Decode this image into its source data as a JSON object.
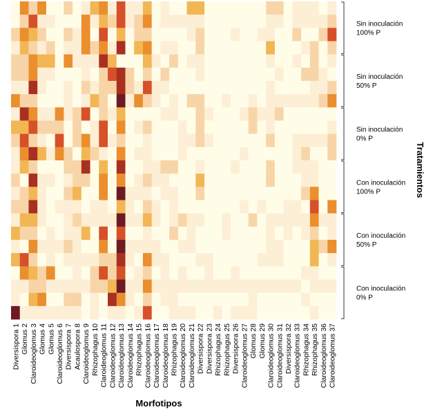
{
  "chart_data": {
    "type": "heatmap",
    "title": "",
    "xlabel": "Morfotipos",
    "ylabel": "Tratamientos",
    "color_scale": [
      "#FFFDE8",
      "#FDEFD6",
      "#F8D5A8",
      "#F2B655",
      "#EA8E2E",
      "#D6502A",
      "#A83020",
      "#6E1A24"
    ],
    "intensity_levels": [
      0,
      1,
      2,
      3,
      4,
      5,
      6,
      7
    ],
    "columns": [
      "Diversispora 1",
      "Glomus 2",
      "Claroideoglomus 3",
      "Glomus 4",
      "Glomus 5",
      "Claroideoglomus 6",
      "Diversispora 7",
      "Acaulospora 8",
      "Claroideoglomus 9",
      "Rhizophagus 10",
      "Claroideoglomus 11",
      "Claroideoglomus 12",
      "Claroideoglomus 13",
      "Claroideoglomus 14",
      "Rhizophagus 15",
      "Claroideoglomus 16",
      "Claroideoglomus 17",
      "Claroideoglomus 18",
      "Rhizophagus 19",
      "Claroideoglomus 20",
      "Claroideoglomus 21",
      "Diversispora 22",
      "Diversispora 23",
      "Rhizophagus 24",
      "Rhizophagus 25",
      "Diversispora 26",
      "Claroideoglomus 27",
      "Glomus 28",
      "Glomus 29",
      "Claroideoglomus 30",
      "Claroideoglomus 31",
      "Diversispora 32",
      "Claroideoglomus 33",
      "Rhizophagus 34",
      "Rhizophagus 35",
      "Claroideoglomus 36",
      "Claroideoglomus 37"
    ],
    "groups": [
      {
        "label_line1": "Sin inoculación",
        "label_line2": "100% P",
        "rows": 4
      },
      {
        "label_line1": "Sin inoculación",
        "label_line2": "50% P",
        "rows": 4
      },
      {
        "label_line1": "Sin inoculación",
        "label_line2": "0% P",
        "rows": 4
      },
      {
        "label_line1": "Con inoculación",
        "label_line2": "100% P",
        "rows": 4
      },
      {
        "label_line1": "Con inoculación",
        "label_line2": "50% P",
        "rows": 4
      },
      {
        "label_line1": "Con inoculación",
        "label_line2": "0% P",
        "rows": 4
      }
    ],
    "values": [
      [
        0,
        4,
        2,
        4,
        0,
        0,
        2,
        0,
        1,
        3,
        4,
        1,
        5,
        1,
        1,
        3,
        0,
        1,
        0,
        0,
        3,
        3,
        0,
        0,
        0,
        0,
        0,
        0,
        0,
        2,
        2,
        0,
        1,
        1,
        1,
        0,
        1
      ],
      [
        0,
        2,
        5,
        1,
        1,
        0,
        0,
        0,
        4,
        1,
        3,
        2,
        5,
        1,
        2,
        4,
        0,
        1,
        1,
        1,
        1,
        1,
        0,
        0,
        0,
        0,
        0,
        0,
        0,
        1,
        1,
        0,
        1,
        1,
        1,
        1,
        2
      ],
      [
        2,
        4,
        3,
        2,
        0,
        0,
        2,
        1,
        4,
        0,
        5,
        0,
        3,
        0,
        2,
        2,
        0,
        0,
        0,
        0,
        1,
        2,
        0,
        0,
        0,
        1,
        0,
        0,
        1,
        1,
        0,
        0,
        2,
        0,
        0,
        2,
        5
      ],
      [
        1,
        3,
        2,
        1,
        2,
        0,
        1,
        1,
        4,
        2,
        4,
        1,
        6,
        0,
        3,
        4,
        0,
        1,
        1,
        0,
        0,
        2,
        0,
        0,
        0,
        0,
        0,
        0,
        0,
        3,
        0,
        0,
        0,
        1,
        2,
        0,
        2
      ],
      [
        2,
        2,
        4,
        3,
        3,
        0,
        4,
        1,
        1,
        1,
        6,
        3,
        0,
        0,
        0,
        3,
        1,
        0,
        2,
        0,
        1,
        1,
        0,
        0,
        0,
        0,
        0,
        0,
        0,
        1,
        0,
        0,
        1,
        0,
        2,
        0,
        1
      ],
      [
        2,
        2,
        4,
        1,
        1,
        0,
        0,
        0,
        1,
        0,
        2,
        5,
        6,
        2,
        0,
        2,
        0,
        2,
        0,
        0,
        0,
        1,
        0,
        0,
        0,
        0,
        0,
        0,
        0,
        0,
        1,
        0,
        0,
        2,
        2,
        1,
        0
      ],
      [
        1,
        1,
        6,
        1,
        0,
        0,
        1,
        0,
        2,
        1,
        2,
        2,
        6,
        2,
        1,
        5,
        1,
        1,
        0,
        0,
        0,
        0,
        0,
        0,
        0,
        0,
        0,
        0,
        0,
        1,
        0,
        0,
        0,
        0,
        1,
        1,
        2
      ],
      [
        4,
        2,
        2,
        0,
        0,
        0,
        1,
        0,
        1,
        3,
        2,
        0,
        7,
        1,
        4,
        2,
        1,
        0,
        1,
        0,
        2,
        2,
        0,
        0,
        1,
        0,
        0,
        1,
        0,
        1,
        1,
        1,
        1,
        1,
        1,
        2,
        4
      ],
      [
        1,
        6,
        4,
        1,
        1,
        4,
        1,
        2,
        5,
        0,
        2,
        1,
        3,
        0,
        0,
        0,
        0,
        1,
        1,
        0,
        0,
        2,
        1,
        0,
        0,
        0,
        1,
        2,
        1,
        1,
        2,
        0,
        0,
        0,
        0,
        0,
        0
      ],
      [
        3,
        3,
        5,
        2,
        2,
        2,
        0,
        2,
        0,
        1,
        5,
        0,
        4,
        0,
        1,
        2,
        0,
        0,
        0,
        1,
        0,
        2,
        0,
        0,
        0,
        0,
        0,
        2,
        0,
        1,
        0,
        0,
        0,
        0,
        0,
        0,
        1
      ],
      [
        2,
        5,
        2,
        1,
        0,
        5,
        0,
        2,
        4,
        1,
        5,
        1,
        2,
        0,
        0,
        1,
        0,
        0,
        0,
        1,
        1,
        2,
        1,
        0,
        0,
        0,
        0,
        0,
        0,
        2,
        0,
        0,
        1,
        1,
        1,
        1,
        2
      ],
      [
        1,
        4,
        6,
        3,
        1,
        4,
        2,
        0,
        3,
        2,
        1,
        0,
        4,
        0,
        1,
        1,
        0,
        0,
        0,
        1,
        0,
        0,
        0,
        0,
        0,
        0,
        1,
        0,
        0,
        0,
        0,
        0,
        1,
        2,
        0,
        0,
        2
      ],
      [
        1,
        3,
        2,
        0,
        0,
        0,
        2,
        2,
        6,
        0,
        3,
        0,
        6,
        0,
        0,
        1,
        1,
        2,
        2,
        0,
        0,
        1,
        0,
        0,
        0,
        1,
        0,
        0,
        0,
        2,
        0,
        0,
        1,
        1,
        1,
        0,
        0
      ],
      [
        2,
        0,
        6,
        1,
        1,
        0,
        1,
        2,
        2,
        0,
        4,
        0,
        4,
        0,
        1,
        2,
        1,
        1,
        0,
        0,
        0,
        3,
        0,
        0,
        0,
        0,
        0,
        0,
        0,
        2,
        0,
        0,
        0,
        1,
        1,
        0,
        0
      ],
      [
        1,
        2,
        3,
        1,
        0,
        0,
        2,
        3,
        0,
        0,
        4,
        0,
        7,
        1,
        1,
        1,
        0,
        1,
        1,
        0,
        0,
        2,
        0,
        0,
        0,
        0,
        0,
        0,
        0,
        0,
        0,
        0,
        0,
        2,
        4,
        0,
        0
      ],
      [
        2,
        2,
        6,
        1,
        0,
        1,
        1,
        1,
        0,
        1,
        1,
        0,
        3,
        1,
        0,
        2,
        1,
        0,
        1,
        0,
        0,
        0,
        0,
        0,
        0,
        0,
        1,
        0,
        1,
        0,
        0,
        1,
        1,
        0,
        5,
        0,
        4
      ],
      [
        1,
        3,
        3,
        1,
        0,
        0,
        1,
        2,
        1,
        1,
        1,
        1,
        7,
        1,
        1,
        3,
        1,
        0,
        1,
        2,
        1,
        1,
        0,
        0,
        1,
        0,
        0,
        2,
        0,
        1,
        1,
        1,
        1,
        1,
        4,
        1,
        1
      ],
      [
        3,
        2,
        2,
        0,
        1,
        0,
        1,
        1,
        3,
        0,
        5,
        0,
        5,
        0,
        0,
        1,
        0,
        0,
        2,
        0,
        1,
        0,
        0,
        0,
        1,
        0,
        0,
        0,
        0,
        1,
        0,
        1,
        0,
        1,
        2,
        0,
        1
      ],
      [
        1,
        0,
        4,
        1,
        1,
        1,
        2,
        1,
        0,
        0,
        4,
        0,
        7,
        1,
        1,
        1,
        1,
        0,
        0,
        1,
        1,
        0,
        0,
        0,
        0,
        0,
        0,
        0,
        0,
        1,
        1,
        0,
        0,
        0,
        3,
        2,
        4
      ],
      [
        3,
        5,
        2,
        0,
        1,
        0,
        1,
        1,
        1,
        1,
        2,
        2,
        6,
        1,
        0,
        4,
        1,
        1,
        0,
        0,
        0,
        1,
        1,
        0,
        0,
        0,
        0,
        0,
        1,
        1,
        1,
        0,
        0,
        0,
        3,
        0,
        1
      ],
      [
        0,
        4,
        3,
        2,
        4,
        0,
        0,
        1,
        0,
        2,
        5,
        2,
        5,
        0,
        1,
        2,
        0,
        1,
        0,
        1,
        0,
        0,
        1,
        0,
        0,
        1,
        0,
        0,
        0,
        0,
        0,
        0,
        0,
        1,
        1,
        0,
        0
      ],
      [
        1,
        1,
        2,
        2,
        1,
        1,
        1,
        1,
        1,
        2,
        2,
        3,
        7,
        1,
        1,
        4,
        1,
        1,
        1,
        1,
        1,
        1,
        1,
        1,
        1,
        1,
        1,
        1,
        1,
        1,
        1,
        1,
        1,
        0,
        1,
        1,
        1
      ],
      [
        1,
        0,
        3,
        4,
        0,
        0,
        2,
        2,
        0,
        1,
        0,
        6,
        4,
        1,
        0,
        2,
        0,
        1,
        1,
        0,
        0,
        0,
        0,
        0,
        0,
        0,
        0,
        1,
        0,
        0,
        0,
        0,
        0,
        1,
        0,
        0,
        0
      ],
      [
        7,
        1,
        1,
        1,
        1,
        1,
        1,
        1,
        0,
        1,
        0,
        1,
        1,
        0,
        1,
        5,
        0,
        0,
        1,
        1,
        1,
        0,
        0,
        1,
        0,
        1,
        1,
        1,
        0,
        0,
        0,
        0,
        0,
        0,
        1,
        0,
        0
      ]
    ]
  }
}
